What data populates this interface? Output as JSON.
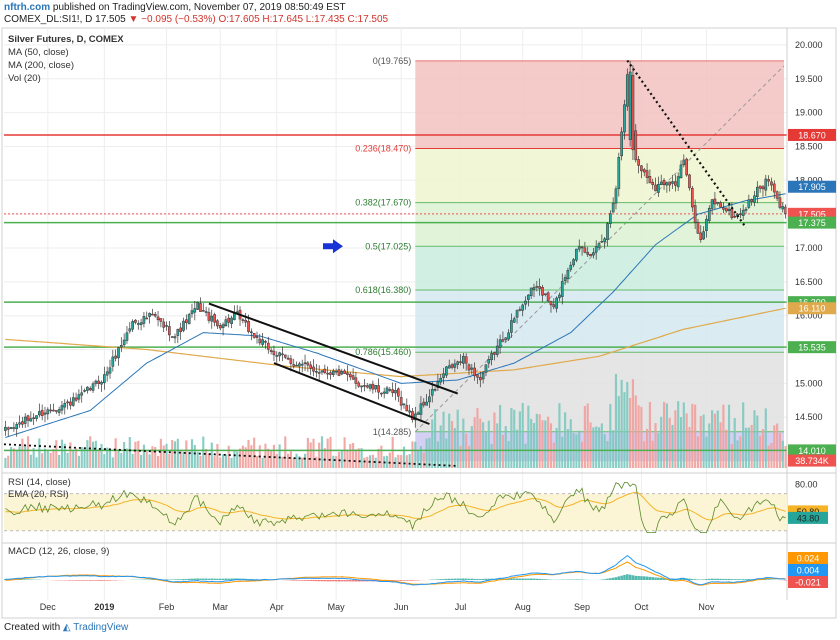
{
  "header": {
    "brand": "nftrh.com",
    "published_text": "published on TradingView.com, November 07, 2019 08:50:49 EST",
    "symbol": "COMEX_DL:SI1!, D",
    "last": "17.505",
    "change": "−0.095 (−0.53%)",
    "o": "O:17.605",
    "h": "H:17.645",
    "l": "L:17.435",
    "c": "C:17.505"
  },
  "legend": {
    "title": "Silver Futures, D, COMEX",
    "ma50": "MA (50, close)",
    "ma200": "MA (200, close)",
    "vol": "Vol (20)",
    "rsi": "RSI (14, close)",
    "ema": "EMA (20, RSI)",
    "macd": "MACD (12, 26, close, 9)"
  },
  "footer": {
    "created_with": "Created with",
    "tradingview": "TradingView"
  },
  "colors": {
    "up": "#26a69a",
    "down": "#ef5350",
    "ma50": "#2a76b8",
    "ma200": "#e0a94b",
    "hline": "#4caf50",
    "red_line": "#e53935",
    "arrow": "#1a33d6"
  },
  "chart_data": {
    "type": "candlestick",
    "x_ticks": [
      "Dec",
      "2019",
      "Feb",
      "Mar",
      "Apr",
      "May",
      "Jun",
      "Jul",
      "Aug",
      "Sep",
      "Oct",
      "Nov"
    ],
    "price_axis": {
      "ylim": [
        13.75,
        20.25
      ],
      "ticks": [
        "20.000",
        "19.500",
        "19.000",
        "18.500",
        "18.000",
        "17.500",
        "17.000",
        "16.500",
        "16.000",
        "15.500",
        "15.000",
        "14.500",
        "14.000"
      ]
    },
    "fib_levels": [
      {
        "label": "0(19.765)",
        "value": 19.765,
        "fill": "#f3c2c0"
      },
      {
        "label": "0.236(18.470)",
        "value": 18.47,
        "fill": "#eef4cf"
      },
      {
        "label": "0.382(17.670)",
        "value": 17.67,
        "fill": "#dcf2d2"
      },
      {
        "label": "0.5(17.025)",
        "value": 17.025,
        "fill": "#c9ecdd"
      },
      {
        "label": "0.618(16.380)",
        "value": 16.38,
        "fill": "#d3e8ee"
      },
      {
        "label": "0.786(15.460)",
        "value": 15.46,
        "fill": "#e0e0e0"
      },
      {
        "label": "1(14.285)",
        "value": 14.285,
        "fill": "#cdc8f2"
      }
    ],
    "fib_box_bottom": 13.85,
    "horizontal_levels": [
      18.67,
      17.375,
      16.2,
      15.535,
      14.01
    ],
    "price_badges": [
      {
        "label": "18.670",
        "value": 18.67,
        "color": "#e53935"
      },
      {
        "label": "17.905",
        "value": 17.905,
        "color": "#2a76b8"
      },
      {
        "label": "17.505",
        "value": 17.505,
        "color": "#ef5350"
      },
      {
        "label": "17.375",
        "value": 17.375,
        "color": "#4caf50"
      },
      {
        "label": "16.200",
        "value": 16.2,
        "color": "#4caf50"
      },
      {
        "label": "16.110",
        "value": 16.11,
        "color": "#e0a94b"
      },
      {
        "label": "15.535",
        "value": 15.535,
        "color": "#4caf50"
      },
      {
        "label": "14.010",
        "value": 14.01,
        "color": "#4caf50"
      },
      {
        "label": "38.734K",
        "value": 13.86,
        "color": "#ef5350"
      }
    ],
    "price_keypoints": [
      [
        0,
        14.3
      ],
      [
        12,
        14.55
      ],
      [
        25,
        14.75
      ],
      [
        35,
        15.1
      ],
      [
        45,
        15.9
      ],
      [
        52,
        16.0
      ],
      [
        60,
        15.7
      ],
      [
        68,
        16.15
      ],
      [
        75,
        15.85
      ],
      [
        82,
        16.0
      ],
      [
        88,
        15.7
      ],
      [
        95,
        15.45
      ],
      [
        102,
        15.3
      ],
      [
        110,
        15.2
      ],
      [
        118,
        15.15
      ],
      [
        125,
        15.0
      ],
      [
        132,
        14.9
      ],
      [
        138,
        14.85
      ],
      [
        144,
        14.5
      ],
      [
        150,
        14.8
      ],
      [
        156,
        15.2
      ],
      [
        162,
        15.35
      ],
      [
        168,
        15.05
      ],
      [
        172,
        15.4
      ],
      [
        178,
        15.8
      ],
      [
        183,
        16.2
      ],
      [
        188,
        16.45
      ],
      [
        194,
        16.1
      ],
      [
        198,
        16.6
      ],
      [
        203,
        17.05
      ],
      [
        208,
        16.9
      ],
      [
        212,
        17.15
      ],
      [
        216,
        17.9
      ],
      [
        220,
        19.6
      ],
      [
        223,
        18.3
      ],
      [
        226,
        18.1
      ],
      [
        230,
        17.9
      ],
      [
        234,
        18.0
      ],
      [
        237,
        17.95
      ],
      [
        240,
        18.3
      ],
      [
        243,
        17.6
      ],
      [
        246,
        17.1
      ],
      [
        250,
        17.7
      ],
      [
        254,
        17.6
      ],
      [
        258,
        17.45
      ],
      [
        262,
        17.6
      ],
      [
        266,
        17.85
      ],
      [
        270,
        18.0
      ],
      [
        273,
        17.7
      ],
      [
        276,
        17.505
      ]
    ],
    "fixed_candles": [
      {
        "i": 221,
        "o": 18.6,
        "h": 19.765,
        "l": 18.5,
        "c": 19.6
      },
      {
        "i": 222,
        "o": 19.55,
        "h": 19.7,
        "l": 18.3,
        "c": 18.45
      }
    ],
    "ma50_points": [
      [
        0,
        14.2
      ],
      [
        30,
        14.6
      ],
      [
        50,
        15.3
      ],
      [
        70,
        15.75
      ],
      [
        90,
        15.7
      ],
      [
        110,
        15.45
      ],
      [
        140,
        15.0
      ],
      [
        160,
        15.05
      ],
      [
        180,
        15.3
      ],
      [
        200,
        15.75
      ],
      [
        215,
        16.35
      ],
      [
        230,
        17.05
      ],
      [
        245,
        17.5
      ],
      [
        262,
        17.7
      ],
      [
        276,
        17.8
      ]
    ],
    "ma200_points": [
      [
        0,
        15.65
      ],
      [
        50,
        15.5
      ],
      [
        100,
        15.25
      ],
      [
        140,
        15.1
      ],
      [
        180,
        15.2
      ],
      [
        210,
        15.4
      ],
      [
        240,
        15.8
      ],
      [
        276,
        16.11
      ]
    ],
    "rsi": {
      "ylim": [
        20,
        90
      ],
      "ticks": [
        "80.00"
      ],
      "badges": [
        {
          "label": "50.80",
          "value": 50.8,
          "color": "#f5b325"
        },
        {
          "label": "43.80",
          "value": 43.8,
          "color": "#26a69a"
        }
      ]
    },
    "macd": {
      "badges": [
        {
          "label": "0.024",
          "value": 0.024,
          "color": "#ff9800"
        },
        {
          "label": "0.004",
          "value": 0.004,
          "color": "#2196f3"
        },
        {
          "label": "-0.021",
          "value": -0.021,
          "color": "#ef5350"
        }
      ]
    }
  }
}
